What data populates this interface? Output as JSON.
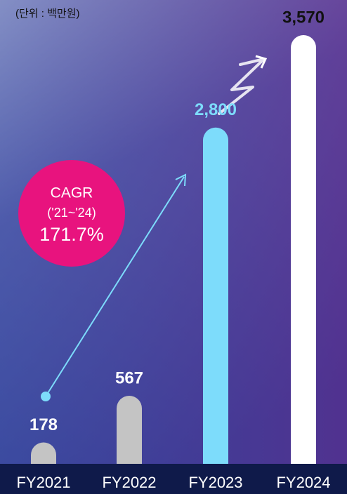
{
  "chart_data": {
    "type": "bar",
    "unit": "(단위 : 백만원)",
    "categories": [
      "FY2021",
      "FY2022",
      "FY2023",
      "FY2024"
    ],
    "values": [
      178,
      567,
      2800,
      3570
    ],
    "value_labels": [
      "178",
      "567",
      "2,800",
      "3,570"
    ],
    "colors": [
      "#c4c4c4",
      "#c4c4c4",
      "#7ddcfb",
      "#ffffff"
    ],
    "label_colors": [
      "#ffffff",
      "#ffffff",
      "#7ddcfb",
      "#111111"
    ],
    "annotation": {
      "title": "CAGR",
      "period": "('21~'24)",
      "value": "171.7%",
      "color": "#e8137e"
    }
  }
}
